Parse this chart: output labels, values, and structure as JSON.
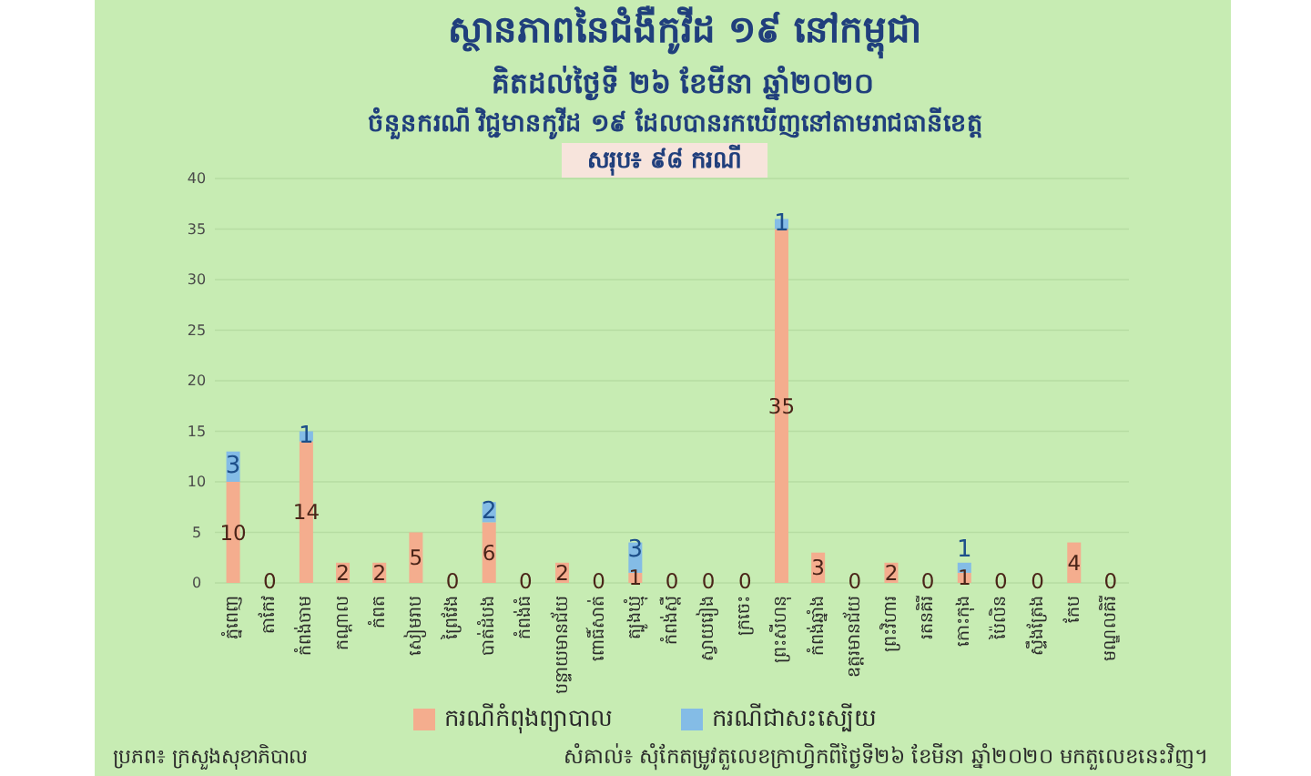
{
  "chart_data": {
    "type": "bar",
    "title": "ស្ថានភាពនៃជំងឺកូវីដ ១៩ នៅកម្ពុជា",
    "subtitle": "គិតដល់ថ្ងៃទី ២៦ ខែមីនា ឆ្នាំ២០២០",
    "annotations": [
      "ចំនួនករណី វិជ្ជមានកូវីដ ១៩ ដែលបានរកឃើញនៅតាមរាជធានីខេត្ត",
      "សរុប៖ ៩៨ ករណី",
      "ប្រភព៖ ក្រសួងសុខាភិបាល",
      "សំគាល់៖ សុំកែតម្រូវតួលេខក្រាហ្វិកពីថ្ងៃទី២៦ ខែមីនា ឆ្នាំ២០២០ មកតួលេខនេះវិញ។"
    ],
    "categories": [
      "ភ្នំពេញ",
      "តាកែវ",
      "កំពង់ចាម",
      "កណ្ដាល",
      "កំពត",
      "សៀមរាប",
      "ព្រៃវែង",
      "បាត់ដំបង",
      "កំពង់ធំ",
      "បន្ទាយមានជ័យ",
      "ពោធិ៍សាត់",
      "ត្បូងឃ្មុំ",
      "កំពង់ស្ពឺ",
      "ស្វាយរៀង",
      "ក្រចេះ",
      "ព្រះសីហនុ",
      "កំពង់ឆ្នាំង",
      "ឧត្ដរមានជ័យ",
      "ព្រះវិហារ",
      "រតនគិរី",
      "កោះកុង",
      "ប៉ៃលិន",
      "ស្ទឹងត្រែង",
      "កែប",
      "មណ្ឌលគិរី"
    ],
    "series": [
      {
        "name": "ករណីកំពុងព្យាបាល",
        "color": "#f4ad8e",
        "values": [
          10,
          0,
          14,
          2,
          2,
          5,
          0,
          6,
          0,
          2,
          0,
          1,
          0,
          0,
          0,
          35,
          3,
          0,
          2,
          0,
          1,
          0,
          0,
          4,
          0
        ],
        "value_labels": [
          "10",
          "0",
          "14",
          "2",
          "2",
          "5",
          "0",
          "6",
          "0",
          "2",
          "0",
          "1",
          "0",
          "0",
          "0",
          "35",
          "3",
          "0",
          "2",
          "0",
          "1",
          "0",
          "0",
          "4",
          "0"
        ]
      },
      {
        "name": "ករណីជាសះស្បើយ",
        "color": "#84bce6",
        "values": [
          3,
          0,
          1,
          0,
          0,
          0,
          0,
          2,
          0,
          0,
          0,
          3,
          0,
          0,
          0,
          1,
          0,
          0,
          0,
          0,
          1,
          0,
          0,
          0,
          0
        ],
        "value_labels": [
          "3",
          null,
          "1",
          null,
          null,
          null,
          null,
          "2",
          null,
          null,
          null,
          "3",
          null,
          null,
          null,
          "1",
          null,
          null,
          null,
          null,
          "1",
          null,
          null,
          null,
          null
        ]
      }
    ],
    "stacked": true,
    "ylim": [
      0,
      40
    ],
    "yticks": [
      0,
      5,
      10,
      15,
      20,
      25,
      30,
      35,
      40
    ],
    "grid": "y",
    "legend": "bottom"
  }
}
